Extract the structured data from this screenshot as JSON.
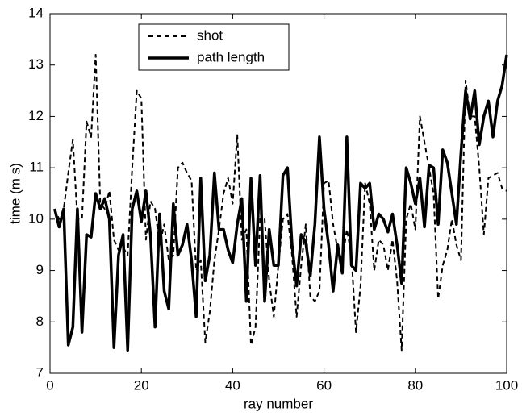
{
  "chart_data": {
    "type": "line",
    "xlabel": "ray number",
    "ylabel": "time (m s)",
    "x": [
      1,
      2,
      3,
      4,
      5,
      6,
      7,
      8,
      9,
      10,
      11,
      12,
      13,
      14,
      15,
      16,
      17,
      18,
      19,
      20,
      21,
      22,
      23,
      24,
      25,
      26,
      27,
      28,
      29,
      30,
      31,
      32,
      33,
      34,
      35,
      36,
      37,
      38,
      39,
      40,
      41,
      42,
      43,
      44,
      45,
      46,
      47,
      48,
      49,
      50,
      51,
      52,
      53,
      54,
      55,
      56,
      57,
      58,
      59,
      60,
      61,
      62,
      63,
      64,
      65,
      66,
      67,
      68,
      69,
      70,
      71,
      72,
      73,
      74,
      75,
      76,
      77,
      78,
      79,
      80,
      81,
      82,
      83,
      84,
      85,
      86,
      87,
      88,
      89,
      90,
      91,
      92,
      93,
      94,
      95,
      96,
      97,
      98,
      99,
      100
    ],
    "series": [
      {
        "name": "shot",
        "color": "#000000",
        "dash": true,
        "values": [
          10.2,
          10.0,
          10.2,
          10.9,
          11.55,
          10.0,
          10.0,
          11.9,
          11.6,
          13.2,
          10.3,
          10.2,
          10.55,
          9.6,
          9.4,
          9.45,
          9.3,
          11.0,
          12.5,
          12.35,
          9.6,
          10.35,
          10.2,
          9.5,
          9.9,
          9.2,
          9.3,
          11.0,
          11.1,
          10.9,
          10.75,
          9.0,
          9.2,
          7.6,
          8.2,
          9.2,
          9.8,
          10.5,
          10.8,
          10.3,
          11.65,
          9.6,
          9.8,
          7.55,
          7.9,
          10.0,
          10.0,
          8.8,
          8.1,
          9.1,
          10.0,
          10.1,
          9.3,
          8.1,
          9.1,
          9.9,
          8.5,
          8.4,
          8.6,
          10.7,
          10.75,
          9.9,
          9.4,
          9.2,
          9.8,
          9.3,
          7.8,
          8.7,
          10.7,
          10.3,
          9.0,
          9.6,
          9.5,
          9.0,
          9.6,
          8.8,
          7.45,
          10.0,
          10.3,
          9.8,
          12.0,
          11.5,
          11.0,
          10.5,
          8.45,
          9.1,
          9.4,
          10.0,
          9.5,
          9.2,
          12.7,
          12.0,
          12.0,
          11.0,
          9.7,
          10.8,
          10.85,
          10.9,
          10.6,
          10.55
        ]
      },
      {
        "name": "path length",
        "color": "#000000",
        "dash": false,
        "values": [
          10.2,
          9.85,
          10.2,
          7.55,
          7.9,
          10.2,
          7.8,
          9.7,
          9.65,
          10.5,
          10.2,
          10.4,
          10.0,
          7.5,
          9.3,
          9.7,
          7.45,
          10.2,
          10.55,
          9.95,
          10.55,
          9.7,
          7.9,
          10.1,
          8.6,
          8.25,
          10.3,
          9.3,
          9.5,
          9.9,
          9.2,
          8.1,
          10.8,
          8.8,
          9.3,
          10.9,
          9.8,
          9.8,
          9.4,
          9.15,
          9.9,
          10.4,
          8.4,
          10.8,
          9.1,
          10.85,
          8.4,
          9.8,
          9.1,
          9.1,
          10.85,
          11.0,
          9.5,
          8.7,
          9.7,
          9.55,
          8.9,
          9.9,
          11.6,
          10.2,
          9.5,
          8.6,
          9.5,
          8.95,
          11.6,
          9.1,
          9.0,
          10.7,
          10.6,
          10.7,
          9.8,
          10.1,
          10.0,
          9.75,
          10.1,
          9.5,
          8.75,
          11.0,
          10.7,
          10.3,
          10.8,
          9.85,
          11.05,
          11.0,
          9.9,
          11.35,
          11.1,
          10.5,
          9.9,
          11.3,
          12.5,
          11.95,
          12.5,
          11.45,
          12.0,
          12.3,
          11.6,
          12.3,
          12.6,
          13.2
        ]
      }
    ],
    "xlim": [
      0,
      100
    ],
    "xticks": [
      0,
      20,
      40,
      60,
      80,
      100
    ],
    "ylim": [
      7,
      14
    ],
    "yticks": [
      7,
      8,
      9,
      10,
      11,
      12,
      13,
      14
    ],
    "grid": false,
    "legend": "upper left"
  }
}
